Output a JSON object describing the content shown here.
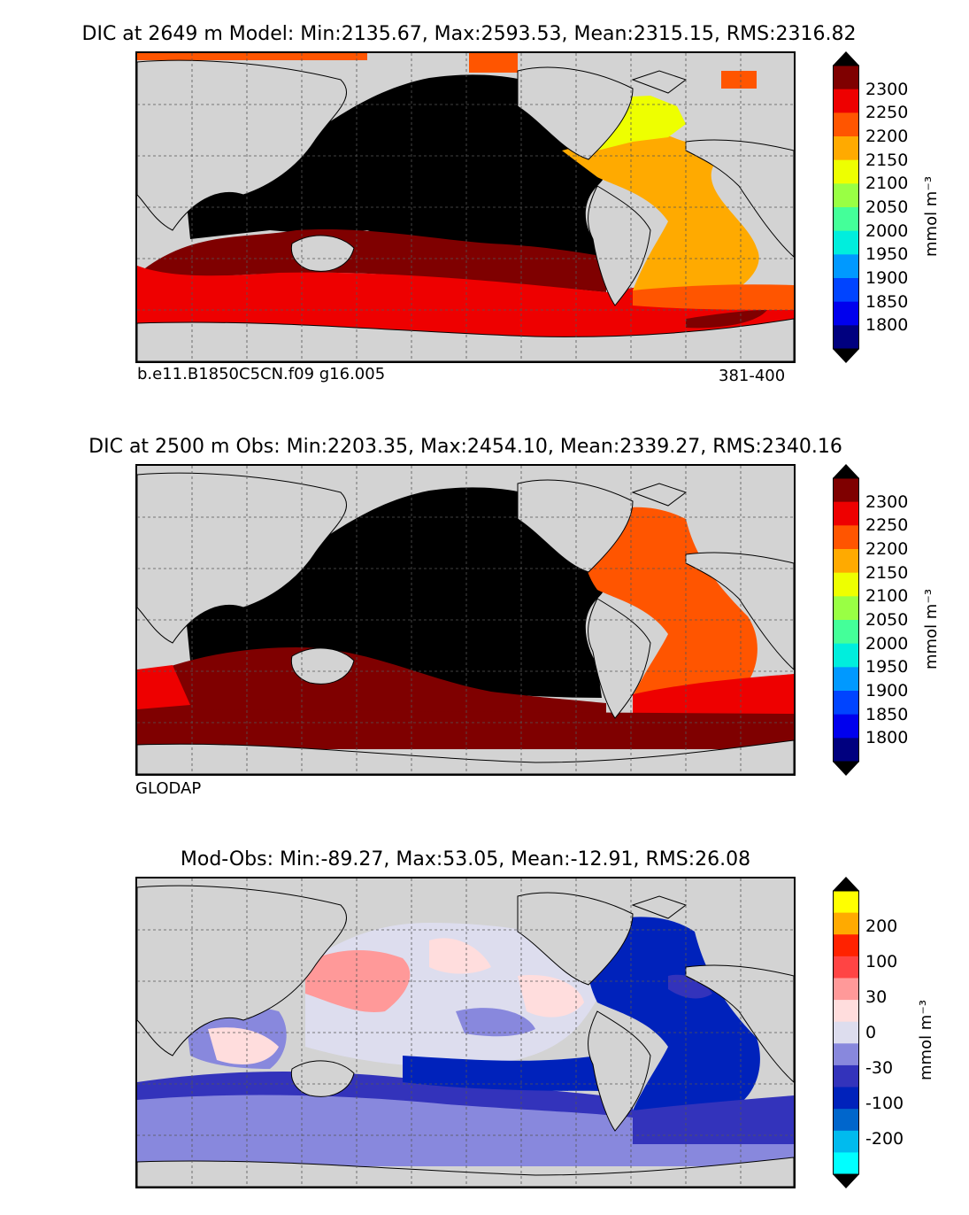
{
  "panels": [
    {
      "title": "DIC at 2649 m Model: Min:2135.67, Max:2593.53, Mean:2315.15, RMS:2316.82",
      "left_note": "b.e11.B1850C5CN.f09 g16.005",
      "right_note": "381-400",
      "colorbar": {
        "ticks": [
          "2300",
          "2250",
          "2200",
          "2150",
          "2100",
          "2050",
          "2000",
          "1950",
          "1900",
          "1850",
          "1800"
        ],
        "colors": [
          "#7f0000",
          "#ee0000",
          "#ff5500",
          "#ffaa00",
          "#eeff00",
          "#99ff44",
          "#44ff99",
          "#00eedd",
          "#0099ff",
          "#0044ff",
          "#0000ee",
          "#00007f"
        ],
        "top_color": "#000000",
        "bottom_color": "#000000",
        "unit": "mmol m⁻³"
      }
    },
    {
      "title": "DIC at 2500 m Obs: Min:2203.35, Max:2454.10, Mean:2339.27, RMS:2340.16",
      "left_note": "GLODAP",
      "right_note": "",
      "colorbar": {
        "ticks": [
          "2300",
          "2250",
          "2200",
          "2150",
          "2100",
          "2050",
          "2000",
          "1950",
          "1900",
          "1850",
          "1800"
        ],
        "colors": [
          "#7f0000",
          "#ee0000",
          "#ff5500",
          "#ffaa00",
          "#eeff00",
          "#99ff44",
          "#44ff99",
          "#00eedd",
          "#0099ff",
          "#0044ff",
          "#0000ee",
          "#00007f"
        ],
        "top_color": "#000000",
        "bottom_color": "#000000",
        "unit": "mmol m⁻³"
      }
    },
    {
      "title": "Mod-Obs: Min:-89.27, Max:53.05, Mean:-12.91, RMS:26.08",
      "left_note": "",
      "right_note": "",
      "colorbar": {
        "ticks": [
          "200",
          "100",
          "30",
          "0",
          "-30",
          "-100",
          "-200"
        ],
        "colors": [
          "#ffff00",
          "#ffaa00",
          "#ff2200",
          "#ff4444",
          "#ff9999",
          "#ffdddd",
          "#ddddee",
          "#8888dd",
          "#3333bb",
          "#0022bb",
          "#0066cc",
          "#00bbee",
          "#00ffff"
        ],
        "top_color": "#000000",
        "bottom_color": "#000000",
        "unit": "mmol m⁻³"
      }
    }
  ],
  "map_colors": {
    "land": "#d3d3d3",
    "nodata": "#ffffff",
    "coast": "#000000"
  }
}
